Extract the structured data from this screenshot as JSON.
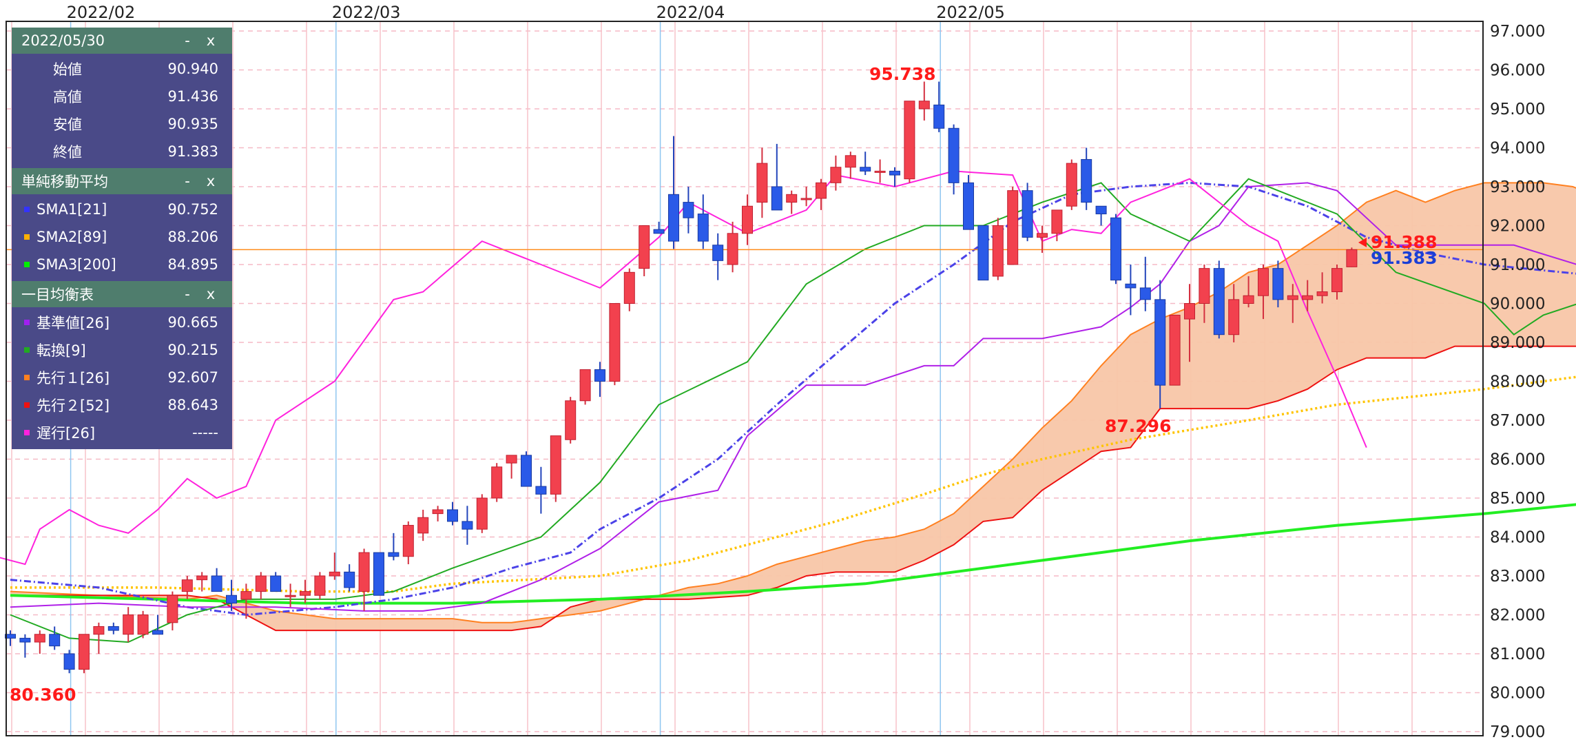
{
  "legend": {
    "date_header": "2022/05/30",
    "minimize": "-",
    "close": "x",
    "ohlc": [
      {
        "label": "始値",
        "value": "90.940"
      },
      {
        "label": "高値",
        "value": "91.436"
      },
      {
        "label": "安値",
        "value": "90.935"
      },
      {
        "label": "終値",
        "value": "91.383"
      }
    ],
    "sma_title": "単純移動平均",
    "sma": [
      {
        "label": "SMA1[21]",
        "value": "90.752",
        "color": "#3333ff"
      },
      {
        "label": "SMA2[89]",
        "value": "88.206",
        "color": "#ffb000"
      },
      {
        "label": "SMA3[200]",
        "value": "84.895",
        "color": "#00ee00"
      }
    ],
    "ichimoku_title": "一目均衡表",
    "ichimoku": [
      {
        "label": "基準値[26]",
        "value": "90.665",
        "color": "#a020f0"
      },
      {
        "label": "転換[9]",
        "value": "90.215",
        "color": "#22aa22"
      },
      {
        "label": "先行１[26]",
        "value": "92.607",
        "color": "#ff8020"
      },
      {
        "label": "先行２[52]",
        "value": "88.643",
        "color": "#ee1111"
      },
      {
        "label": "遅行[26]",
        "value": "-----",
        "color": "#ff22dd"
      }
    ]
  },
  "chart_data": {
    "type": "candlestick",
    "x_months": [
      "2022/02",
      "2022/03",
      "2022/04",
      "2022/05"
    ],
    "y_ticks": [
      "97.000",
      "96.000",
      "95.000",
      "94.000",
      "93.000",
      "92.000",
      "91.000",
      "90.000",
      "89.000",
      "88.000",
      "87.000",
      "86.000",
      "85.000",
      "84.000",
      "83.000",
      "82.000",
      "81.000",
      "80.000",
      "79.000"
    ],
    "ylim": [
      79.0,
      97.0
    ],
    "annotations": {
      "high_label": "95.738",
      "low_label": "80.360",
      "may_low_label": "87.296",
      "last_price_1": "91.388",
      "last_price_2": "91.383"
    },
    "current_price": 91.383,
    "candles": [
      [
        81.5,
        81.6,
        81.2,
        81.4
      ],
      [
        81.4,
        81.5,
        80.9,
        81.3
      ],
      [
        81.3,
        81.6,
        81.0,
        81.5
      ],
      [
        81.5,
        81.7,
        81.1,
        81.2
      ],
      [
        81.0,
        81.1,
        80.5,
        80.6
      ],
      [
        80.6,
        81.5,
        80.5,
        81.5
      ],
      [
        81.5,
        81.8,
        81.0,
        81.7
      ],
      [
        81.7,
        81.8,
        81.5,
        81.6
      ],
      [
        81.5,
        82.2,
        81.3,
        82.0
      ],
      [
        81.5,
        82.1,
        81.4,
        82.0
      ],
      [
        81.6,
        82.0,
        81.5,
        81.5
      ],
      [
        81.8,
        82.6,
        81.6,
        82.5
      ],
      [
        82.6,
        83.0,
        82.4,
        82.9
      ],
      [
        82.9,
        83.1,
        82.6,
        83.0
      ],
      [
        83.0,
        83.2,
        82.6,
        82.6
      ],
      [
        82.5,
        82.9,
        82.1,
        82.3
      ],
      [
        82.4,
        82.8,
        81.9,
        82.6
      ],
      [
        82.6,
        83.1,
        82.4,
        83.0
      ],
      [
        83.0,
        83.1,
        82.6,
        82.6
      ],
      [
        82.5,
        82.8,
        82.2,
        82.5
      ],
      [
        82.5,
        82.9,
        82.3,
        82.6
      ],
      [
        82.5,
        83.1,
        82.4,
        83.0
      ],
      [
        83.0,
        83.6,
        82.9,
        83.1
      ],
      [
        83.1,
        83.3,
        82.6,
        82.7
      ],
      [
        82.6,
        83.7,
        82.1,
        83.6
      ],
      [
        83.6,
        83.6,
        82.5,
        82.5
      ],
      [
        83.6,
        84.1,
        83.4,
        83.5
      ],
      [
        83.5,
        84.4,
        83.3,
        84.3
      ],
      [
        84.1,
        84.7,
        83.9,
        84.5
      ],
      [
        84.6,
        84.8,
        84.4,
        84.7
      ],
      [
        84.7,
        84.9,
        84.3,
        84.4
      ],
      [
        84.4,
        84.8,
        83.8,
        84.2
      ],
      [
        84.2,
        85.1,
        84.1,
        85.0
      ],
      [
        85.0,
        85.9,
        84.9,
        85.8
      ],
      [
        85.9,
        86.1,
        85.5,
        86.1
      ],
      [
        86.1,
        86.2,
        85.3,
        85.3
      ],
      [
        85.3,
        85.8,
        84.6,
        85.1
      ],
      [
        85.1,
        86.6,
        84.9,
        86.6
      ],
      [
        86.5,
        87.6,
        86.4,
        87.5
      ],
      [
        87.5,
        88.3,
        87.4,
        88.3
      ],
      [
        88.3,
        88.5,
        87.6,
        88.0
      ],
      [
        88.0,
        90.0,
        87.9,
        90.0
      ],
      [
        90.0,
        90.9,
        89.8,
        90.8
      ],
      [
        90.9,
        92.0,
        90.7,
        92.0
      ],
      [
        91.9,
        92.1,
        91.8,
        91.8
      ],
      [
        92.8,
        94.3,
        91.4,
        91.6
      ],
      [
        92.6,
        93.0,
        91.8,
        92.2
      ],
      [
        92.3,
        92.8,
        91.4,
        91.6
      ],
      [
        91.5,
        91.8,
        90.6,
        91.1
      ],
      [
        91.0,
        92.1,
        90.8,
        91.8
      ],
      [
        91.8,
        92.8,
        91.5,
        92.5
      ],
      [
        92.6,
        94.0,
        92.2,
        93.6
      ],
      [
        93.0,
        94.1,
        92.5,
        92.4
      ],
      [
        92.6,
        92.9,
        92.3,
        92.8
      ],
      [
        92.7,
        93.0,
        92.5,
        92.7
      ],
      [
        92.7,
        93.2,
        92.4,
        93.1
      ],
      [
        93.1,
        93.8,
        92.9,
        93.5
      ],
      [
        93.5,
        93.9,
        93.2,
        93.8
      ],
      [
        93.5,
        93.9,
        93.3,
        93.4
      ],
      [
        93.4,
        93.7,
        93.1,
        93.4
      ],
      [
        93.4,
        93.5,
        93.0,
        93.3
      ],
      [
        93.2,
        95.2,
        93.1,
        95.2
      ],
      [
        95.0,
        95.7,
        94.7,
        95.2
      ],
      [
        95.1,
        95.7,
        94.4,
        94.5
      ],
      [
        94.5,
        94.6,
        92.8,
        93.1
      ],
      [
        93.1,
        93.3,
        91.9,
        91.9
      ],
      [
        92.0,
        92.0,
        90.6,
        90.6
      ],
      [
        90.7,
        92.2,
        90.6,
        92.0
      ],
      [
        91.0,
        93.0,
        91.0,
        92.9
      ],
      [
        92.9,
        93.1,
        91.6,
        91.7
      ],
      [
        91.7,
        92.0,
        91.3,
        91.8
      ],
      [
        91.8,
        92.3,
        91.6,
        92.4
      ],
      [
        92.5,
        93.7,
        92.4,
        93.6
      ],
      [
        93.7,
        94.0,
        92.4,
        92.6
      ],
      [
        92.5,
        92.5,
        92.0,
        92.3
      ],
      [
        92.2,
        92.3,
        90.5,
        90.6
      ],
      [
        90.5,
        91.0,
        89.7,
        90.4
      ],
      [
        90.4,
        91.2,
        89.8,
        90.1
      ],
      [
        90.1,
        90.6,
        87.3,
        87.9
      ],
      [
        87.9,
        89.7,
        87.9,
        89.7
      ],
      [
        89.6,
        90.5,
        88.5,
        90.0
      ],
      [
        90.0,
        91.0,
        89.5,
        90.9
      ],
      [
        90.9,
        91.1,
        89.1,
        89.2
      ],
      [
        89.2,
        90.5,
        89.0,
        90.1
      ],
      [
        90.0,
        90.7,
        89.9,
        90.2
      ],
      [
        90.2,
        91.0,
        89.6,
        90.9
      ],
      [
        90.9,
        91.1,
        89.9,
        90.1
      ],
      [
        90.1,
        90.5,
        89.5,
        90.2
      ],
      [
        90.1,
        90.6,
        89.8,
        90.2
      ],
      [
        90.2,
        90.8,
        90.0,
        90.3
      ],
      [
        90.3,
        91.0,
        90.1,
        90.9
      ],
      [
        90.94,
        91.436,
        90.935,
        91.383
      ]
    ]
  }
}
